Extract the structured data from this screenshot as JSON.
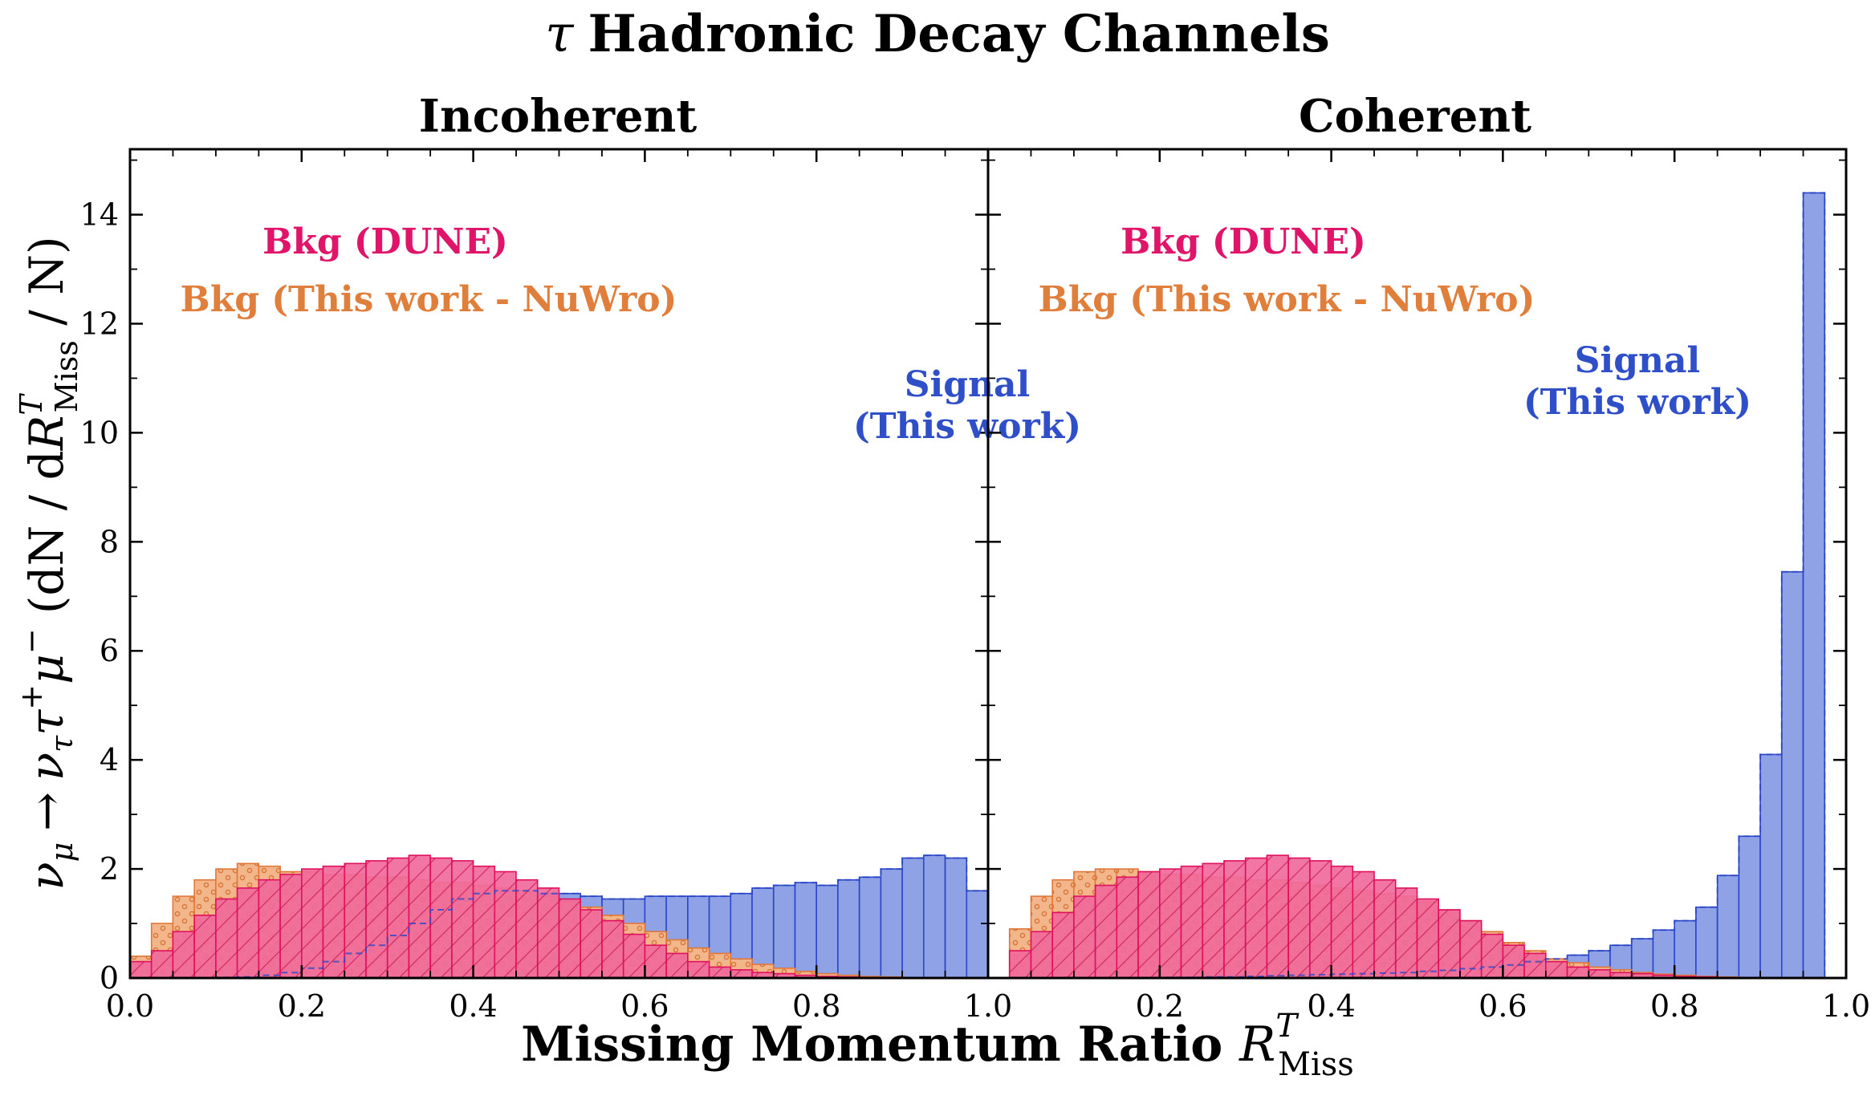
{
  "figure": {
    "title_symbol": "τ",
    "title_text": "Hadronic Decay Channels",
    "xlabel_text": "Missing Momentum Ratio ",
    "xlabel_symbol": "R",
    "xlabel_sup": "T",
    "xlabel_sub": "Miss",
    "ylabel_lhs": "ν",
    "ylabel_lhs_sub": "μ",
    "ylabel_arrow": "→",
    "ylabel_nu": "ν",
    "ylabel_nu_sub": "τ",
    "ylabel_tau": "τ",
    "ylabel_tau_sup": "+",
    "ylabel_mu": "μ",
    "ylabel_mu_sup": "−",
    "ylabel_open": "(dN / d",
    "ylabel_R": "R",
    "ylabel_R_sup": "T",
    "ylabel_R_sub": "Miss",
    "ylabel_close": " / N)",
    "colors": {
      "signal_fill": "#8fa2e6",
      "signal_edge": "#2b47c8",
      "dune_fill": "#f06a9b",
      "dune_edge": "#e0105e",
      "nuwro_fill": "#f2b68a",
      "nuwro_edge": "#e0783a",
      "signal_text": "#2f4fc9",
      "dune_text": "#e0156a",
      "nuwro_text": "#e07f3c"
    }
  },
  "chart_data": [
    {
      "type": "histogram",
      "title": "Incoherent",
      "xlim": [
        0.0,
        1.0
      ],
      "ylim": [
        0,
        15.2
      ],
      "xticks": [
        "0.0",
        "0.2",
        "0.4",
        "0.6",
        "0.8",
        "1.0"
      ],
      "yticks": [
        "0",
        "2",
        "4",
        "6",
        "8",
        "10",
        "12",
        "14"
      ],
      "bin_width": 0.025,
      "legend": {
        "dune": "Bkg (DUNE)",
        "nuwro": "Bkg (This work - NuWro)",
        "signal_line1": "Signal",
        "signal_line2": "(This work)"
      },
      "series": [
        {
          "key": "nuwro",
          "name": "Bkg (This work - NuWro)",
          "values": [
            0.4,
            1.0,
            1.5,
            1.8,
            2.0,
            2.1,
            2.05,
            1.95,
            1.95,
            1.9,
            1.9,
            1.85,
            1.85,
            1.8,
            1.75,
            1.75,
            1.7,
            1.65,
            1.6,
            1.5,
            1.4,
            1.3,
            1.15,
            1.0,
            0.85,
            0.7,
            0.55,
            0.45,
            0.35,
            0.25,
            0.18,
            0.12,
            0.08,
            0.05,
            0.03,
            0.02,
            0.01,
            0.01,
            0.0,
            0.0
          ]
        },
        {
          "key": "dune",
          "name": "Bkg (DUNE)",
          "values": [
            0.3,
            0.5,
            0.85,
            1.15,
            1.45,
            1.65,
            1.8,
            1.9,
            2.0,
            2.05,
            2.1,
            2.15,
            2.2,
            2.25,
            2.2,
            2.15,
            2.05,
            1.95,
            1.8,
            1.65,
            1.45,
            1.25,
            1.05,
            0.8,
            0.6,
            0.45,
            0.3,
            0.2,
            0.15,
            0.1,
            0.08,
            0.05,
            0.03,
            0.02,
            0.01,
            0.01,
            0.0,
            0.0,
            0.0,
            0.0
          ]
        },
        {
          "key": "signal",
          "name": "Signal (This work)",
          "values": [
            0.0,
            0.0,
            0.0,
            0.0,
            0.01,
            0.02,
            0.05,
            0.1,
            0.18,
            0.3,
            0.45,
            0.6,
            0.78,
            1.0,
            1.25,
            1.45,
            1.55,
            1.6,
            1.6,
            1.55,
            1.55,
            1.5,
            1.45,
            1.45,
            1.5,
            1.5,
            1.5,
            1.5,
            1.55,
            1.65,
            1.7,
            1.75,
            1.7,
            1.8,
            1.85,
            2.0,
            2.2,
            2.25,
            2.2,
            1.6
          ]
        }
      ]
    },
    {
      "type": "histogram",
      "title": "Coherent",
      "xlim": [
        0.0,
        1.0
      ],
      "ylim": [
        0,
        15.2
      ],
      "xticks": [
        "0.0",
        "0.2",
        "0.4",
        "0.6",
        "0.8",
        "1.0"
      ],
      "yticks": [
        "0",
        "2",
        "4",
        "6",
        "8",
        "10",
        "12",
        "14"
      ],
      "bin_width": 0.025,
      "legend": {
        "dune": "Bkg (DUNE)",
        "nuwro": "Bkg (This work - NuWro)",
        "signal_line1": "Signal",
        "signal_line2": "(This work)"
      },
      "series": [
        {
          "key": "nuwro",
          "name": "Bkg (This work - NuWro)",
          "values": [
            0.0,
            0.9,
            1.5,
            1.8,
            1.95,
            2.0,
            2.0,
            1.95,
            1.9,
            1.9,
            1.85,
            1.85,
            1.8,
            1.8,
            1.75,
            1.7,
            1.65,
            1.6,
            1.55,
            1.5,
            1.4,
            1.25,
            1.05,
            0.85,
            0.65,
            0.5,
            0.35,
            0.28,
            0.2,
            0.15,
            0.1,
            0.07,
            0.05,
            0.03,
            0.02,
            0.01,
            0.0,
            0.0,
            0.0,
            0.0
          ]
        },
        {
          "key": "dune",
          "name": "Bkg (DUNE)",
          "values": [
            0.0,
            0.5,
            0.85,
            1.2,
            1.5,
            1.7,
            1.85,
            1.95,
            2.0,
            2.05,
            2.1,
            2.15,
            2.2,
            2.25,
            2.2,
            2.15,
            2.05,
            1.95,
            1.8,
            1.65,
            1.45,
            1.25,
            1.05,
            0.8,
            0.6,
            0.45,
            0.3,
            0.2,
            0.15,
            0.1,
            0.08,
            0.05,
            0.03,
            0.02,
            0.01,
            0.01,
            0.0,
            0.0,
            0.0,
            0.0
          ]
        },
        {
          "key": "signal",
          "name": "Signal (This work)",
          "values": [
            0.0,
            0.0,
            0.0,
            0.0,
            0.0,
            0.0,
            0.0,
            0.0,
            0.01,
            0.01,
            0.02,
            0.02,
            0.03,
            0.04,
            0.05,
            0.06,
            0.07,
            0.08,
            0.09,
            0.1,
            0.12,
            0.14,
            0.17,
            0.2,
            0.24,
            0.3,
            0.35,
            0.42,
            0.5,
            0.6,
            0.72,
            0.88,
            1.05,
            1.3,
            1.88,
            2.6,
            4.1,
            7.45,
            14.4,
            0.0
          ]
        }
      ]
    }
  ]
}
